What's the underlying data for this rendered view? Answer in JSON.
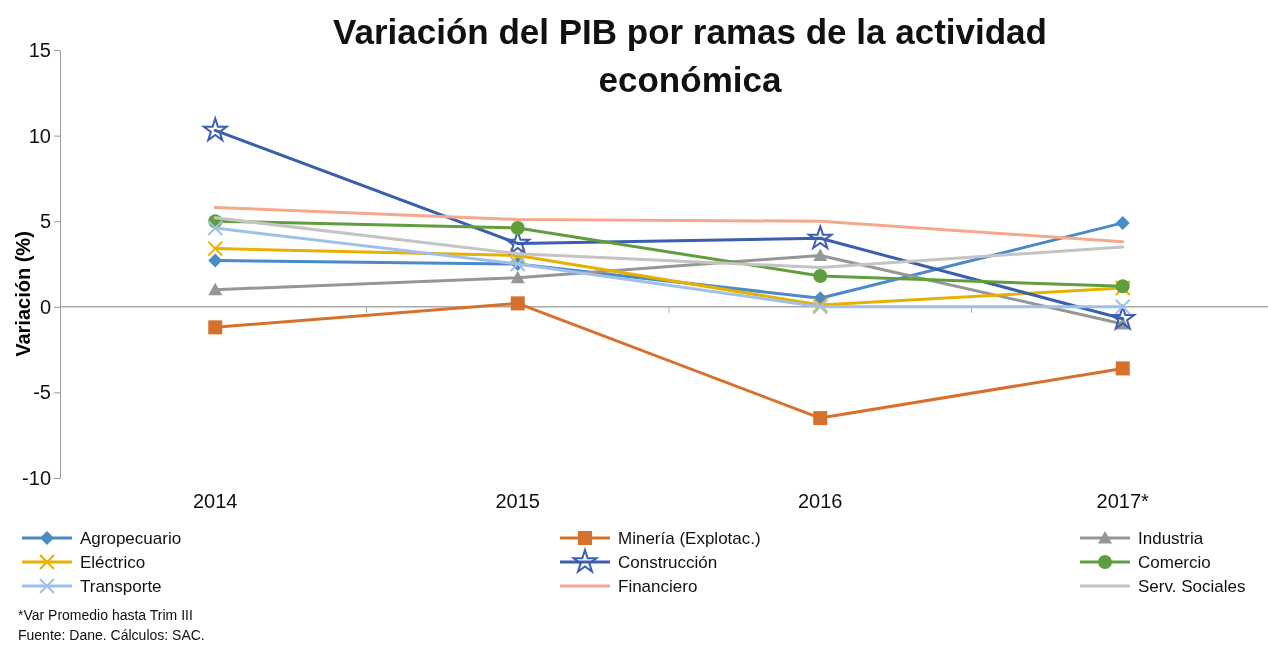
{
  "chart_data": {
    "type": "line",
    "title": "Variación del PIB por ramas de la actividad económica",
    "ylabel": "Variación (%)",
    "categories": [
      "2014",
      "2015",
      "2016",
      "2017*"
    ],
    "ylim": [
      -10,
      15
    ],
    "yticks": [
      -10,
      -5,
      0,
      5,
      10,
      15
    ],
    "legend": "bottom",
    "series": [
      {
        "name": "Agropecuario",
        "color": "#4a8ac6",
        "marker": "diamond",
        "values": [
          2.7,
          2.5,
          0.5,
          4.9
        ]
      },
      {
        "name": "Minería (Explotac.)",
        "color": "#d6702c",
        "marker": "square",
        "values": [
          -1.2,
          0.2,
          -6.5,
          -3.6
        ]
      },
      {
        "name": "Industria",
        "color": "#969696",
        "marker": "triangle",
        "values": [
          1.0,
          1.7,
          3.0,
          -1.0
        ]
      },
      {
        "name": "Eléctrico",
        "color": "#e8b000",
        "marker": "cross",
        "values": [
          3.4,
          3.0,
          0.1,
          1.1
        ]
      },
      {
        "name": "Construcción",
        "color": "#3a5fb0",
        "marker": "star",
        "values": [
          10.3,
          3.7,
          4.0,
          -0.7
        ]
      },
      {
        "name": "Comercio",
        "color": "#5f9e3c",
        "marker": "circle",
        "values": [
          5.0,
          4.6,
          1.8,
          1.2
        ]
      },
      {
        "name": "Transporte",
        "color": "#9fc0e8",
        "marker": "cross",
        "values": [
          4.6,
          2.5,
          0.0,
          0.0
        ]
      },
      {
        "name": "Financiero",
        "color": "#f4a88c",
        "marker": "none",
        "values": [
          5.8,
          5.1,
          5.0,
          3.8
        ]
      },
      {
        "name": "Serv. Sociales",
        "color": "#c4c4c4",
        "marker": "none",
        "values": [
          5.2,
          3.1,
          2.3,
          3.5
        ]
      }
    ],
    "annotations": [
      "*Var Promedio hasta Trim III",
      "Fuente: Dane. Cálculos: SAC."
    ]
  }
}
